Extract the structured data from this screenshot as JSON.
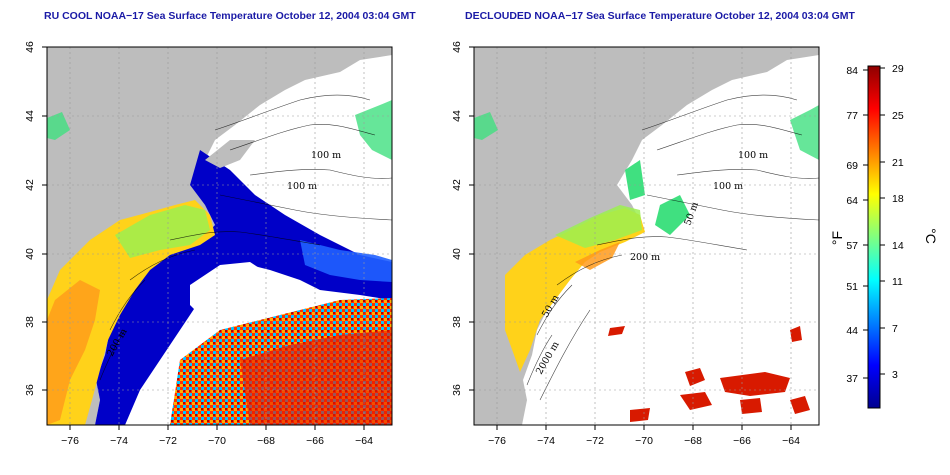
{
  "titles": {
    "left": "RU COOL NOAA−17 Sea Surface Temperature October 12, 2004 03:04 GMT",
    "right": "DECLOUDED NOAA−17 Sea Surface Temperature October 12, 2004 03:04 GMT"
  },
  "axes": {
    "lon_ticks": [
      "−76",
      "−74",
      "−72",
      "−70",
      "−68",
      "−66",
      "−64"
    ],
    "lat_ticks": [
      "36",
      "38",
      "40",
      "42",
      "44",
      "46"
    ]
  },
  "contour_labels": {
    "left": [
      "100 m",
      "100 m",
      "200 m"
    ],
    "right": [
      "100 m",
      "100 m",
      "50 m",
      "200 m",
      "50 m",
      "2000 m"
    ]
  },
  "colorbar": {
    "fahrenheit_label": "°F",
    "celsius_label": "°C",
    "fahrenheit_ticks": [
      "84",
      "77",
      "69",
      "64",
      "57",
      "51",
      "44",
      "37"
    ],
    "celsius_ticks": [
      "29",
      "25",
      "21",
      "18",
      "14",
      "11",
      "7",
      "3"
    ]
  },
  "colors": {
    "land": "#bdbdbd",
    "title": "#1a1aa6",
    "cold": "#00008f",
    "hot": "#8f0000"
  }
}
